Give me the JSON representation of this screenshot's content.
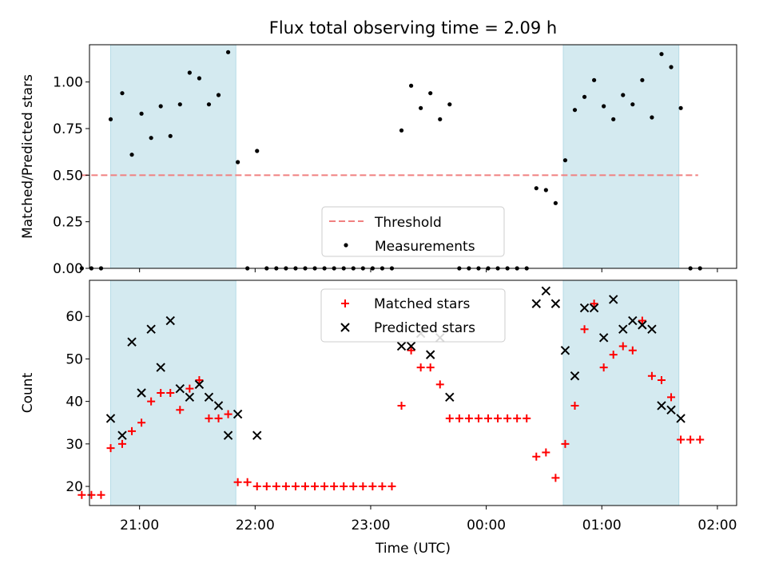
{
  "chart_data": [
    {
      "type": "scatter",
      "title": "Flux total observing time = 2.09 h",
      "ylabel": "Matched/Predicted stars",
      "xlabel": "",
      "ylim": [
        0,
        1.2
      ],
      "x_axis_type": "time",
      "xlim": [
        "20:34",
        "02:10"
      ],
      "x_tick_labels": [
        "21:00",
        "22:00",
        "23:00",
        "00:00",
        "01:00",
        "02:00"
      ],
      "y_tick_labels": [
        "0.00",
        "0.25",
        "0.50",
        "0.75",
        "1.00"
      ],
      "legend_position": "lower-center",
      "shaded_regions": [
        [
          "20:45",
          "21:50"
        ],
        [
          "00:40",
          "01:40"
        ]
      ],
      "shade_color": "#d4eaf0",
      "threshold": {
        "name": "Threshold",
        "value": 0.5,
        "x_range": [
          "20:30",
          "01:50"
        ],
        "color": "#f08080"
      },
      "series": [
        {
          "name": "Measurements",
          "color": "#000000",
          "points": [
            [
              "20:30",
              0.0
            ],
            [
              "20:35",
              0.0
            ],
            [
              "20:40",
              0.0
            ],
            [
              "20:45",
              0.8
            ],
            [
              "20:51",
              0.94
            ],
            [
              "20:56",
              0.61
            ],
            [
              "21:01",
              0.83
            ],
            [
              "21:06",
              0.7
            ],
            [
              "21:11",
              0.87
            ],
            [
              "21:16",
              0.71
            ],
            [
              "21:21",
              0.88
            ],
            [
              "21:26",
              1.05
            ],
            [
              "21:31",
              1.02
            ],
            [
              "21:36",
              0.88
            ],
            [
              "21:41",
              0.93
            ],
            [
              "21:46",
              1.16
            ],
            [
              "21:51",
              0.57
            ],
            [
              "21:56",
              0.0
            ],
            [
              "22:01",
              0.63
            ],
            [
              "22:06",
              0.0
            ],
            [
              "22:11",
              0.0
            ],
            [
              "22:16",
              0.0
            ],
            [
              "22:21",
              0.0
            ],
            [
              "22:26",
              0.0
            ],
            [
              "22:31",
              0.0
            ],
            [
              "22:36",
              0.0
            ],
            [
              "22:41",
              0.0
            ],
            [
              "22:46",
              0.0
            ],
            [
              "22:51",
              0.0
            ],
            [
              "22:56",
              0.0
            ],
            [
              "23:01",
              0.0
            ],
            [
              "23:06",
              0.0
            ],
            [
              "23:11",
              0.0
            ],
            [
              "23:16",
              0.74
            ],
            [
              "23:21",
              0.98
            ],
            [
              "23:26",
              0.86
            ],
            [
              "23:31",
              0.94
            ],
            [
              "23:36",
              0.8
            ],
            [
              "23:41",
              0.88
            ],
            [
              "23:46",
              0.0
            ],
            [
              "23:51",
              0.0
            ],
            [
              "23:56",
              0.0
            ],
            [
              "00:01",
              0.0
            ],
            [
              "00:06",
              0.0
            ],
            [
              "00:11",
              0.0
            ],
            [
              "00:16",
              0.0
            ],
            [
              "00:21",
              0.0
            ],
            [
              "00:26",
              0.43
            ],
            [
              "00:31",
              0.42
            ],
            [
              "00:36",
              0.35
            ],
            [
              "00:41",
              0.58
            ],
            [
              "00:46",
              0.85
            ],
            [
              "00:51",
              0.92
            ],
            [
              "00:56",
              1.01
            ],
            [
              "01:01",
              0.87
            ],
            [
              "01:06",
              0.8
            ],
            [
              "01:11",
              0.93
            ],
            [
              "01:16",
              0.88
            ],
            [
              "01:21",
              1.01
            ],
            [
              "01:26",
              0.81
            ],
            [
              "01:31",
              1.15
            ],
            [
              "01:36",
              1.08
            ],
            [
              "01:41",
              0.86
            ],
            [
              "01:46",
              0.0
            ],
            [
              "01:51",
              0.0
            ]
          ]
        }
      ]
    },
    {
      "type": "scatter",
      "title": "",
      "ylabel": "Count",
      "xlabel": "Time (UTC)",
      "ylim": [
        15.5,
        68.5
      ],
      "x_axis_type": "time",
      "xlim": [
        "20:34",
        "02:10"
      ],
      "x_tick_labels": [
        "21:00",
        "22:00",
        "23:00",
        "00:00",
        "01:00",
        "02:00"
      ],
      "y_tick_labels": [
        "20",
        "30",
        "40",
        "50",
        "60"
      ],
      "legend_position": "upper-center",
      "shaded_regions": [
        [
          "20:45",
          "21:50"
        ],
        [
          "00:40",
          "01:40"
        ]
      ],
      "series": [
        {
          "name": "Matched stars",
          "marker": "plus",
          "color": "#ff0000",
          "points": [
            [
              "20:30",
              18
            ],
            [
              "20:35",
              18
            ],
            [
              "20:40",
              18
            ],
            [
              "20:45",
              29
            ],
            [
              "20:51",
              30
            ],
            [
              "20:56",
              33
            ],
            [
              "21:01",
              35
            ],
            [
              "21:06",
              40
            ],
            [
              "21:11",
              42
            ],
            [
              "21:16",
              42
            ],
            [
              "21:21",
              38
            ],
            [
              "21:26",
              43
            ],
            [
              "21:31",
              45
            ],
            [
              "21:36",
              36
            ],
            [
              "21:41",
              36
            ],
            [
              "21:46",
              37
            ],
            [
              "21:51",
              21
            ],
            [
              "21:56",
              21
            ],
            [
              "22:01",
              20
            ],
            [
              "22:06",
              20
            ],
            [
              "22:11",
              20
            ],
            [
              "22:16",
              20
            ],
            [
              "22:21",
              20
            ],
            [
              "22:26",
              20
            ],
            [
              "22:31",
              20
            ],
            [
              "22:36",
              20
            ],
            [
              "22:41",
              20
            ],
            [
              "22:46",
              20
            ],
            [
              "22:51",
              20
            ],
            [
              "22:56",
              20
            ],
            [
              "23:01",
              20
            ],
            [
              "23:06",
              20
            ],
            [
              "23:11",
              20
            ],
            [
              "23:16",
              39
            ],
            [
              "23:21",
              52
            ],
            [
              "23:26",
              48
            ],
            [
              "23:31",
              48
            ],
            [
              "23:36",
              44
            ],
            [
              "23:41",
              36
            ],
            [
              "23:46",
              36
            ],
            [
              "23:51",
              36
            ],
            [
              "23:56",
              36
            ],
            [
              "00:01",
              36
            ],
            [
              "00:06",
              36
            ],
            [
              "00:11",
              36
            ],
            [
              "00:16",
              36
            ],
            [
              "00:21",
              36
            ],
            [
              "00:26",
              27
            ],
            [
              "00:31",
              28
            ],
            [
              "00:36",
              22
            ],
            [
              "00:41",
              30
            ],
            [
              "00:46",
              39
            ],
            [
              "00:51",
              57
            ],
            [
              "00:56",
              63
            ],
            [
              "01:01",
              48
            ],
            [
              "01:06",
              51
            ],
            [
              "01:11",
              53
            ],
            [
              "01:16",
              52
            ],
            [
              "01:21",
              59
            ],
            [
              "01:26",
              46
            ],
            [
              "01:31",
              45
            ],
            [
              "01:36",
              41
            ],
            [
              "01:41",
              31
            ],
            [
              "01:46",
              31
            ],
            [
              "01:51",
              31
            ]
          ]
        },
        {
          "name": "Predicted stars",
          "marker": "x",
          "color": "#000000",
          "points": [
            [
              "20:45",
              36
            ],
            [
              "20:51",
              32
            ],
            [
              "20:56",
              54
            ],
            [
              "21:01",
              42
            ],
            [
              "21:06",
              57
            ],
            [
              "21:11",
              48
            ],
            [
              "21:16",
              59
            ],
            [
              "21:21",
              43
            ],
            [
              "21:26",
              41
            ],
            [
              "21:31",
              44
            ],
            [
              "21:36",
              41
            ],
            [
              "21:41",
              39
            ],
            [
              "21:46",
              32
            ],
            [
              "21:51",
              37
            ],
            [
              "22:01",
              32
            ],
            [
              "23:16",
              53
            ],
            [
              "23:21",
              53
            ],
            [
              "23:26",
              56
            ],
            [
              "23:31",
              51
            ],
            [
              "23:36",
              55
            ],
            [
              "23:41",
              41
            ],
            [
              "00:26",
              63
            ],
            [
              "00:31",
              66
            ],
            [
              "00:36",
              63
            ],
            [
              "00:41",
              52
            ],
            [
              "00:46",
              46
            ],
            [
              "00:51",
              62
            ],
            [
              "00:56",
              62
            ],
            [
              "01:01",
              55
            ],
            [
              "01:06",
              64
            ],
            [
              "01:11",
              57
            ],
            [
              "01:16",
              59
            ],
            [
              "01:21",
              58
            ],
            [
              "01:26",
              57
            ],
            [
              "01:31",
              39
            ],
            [
              "01:36",
              38
            ],
            [
              "01:41",
              36
            ]
          ]
        }
      ]
    }
  ]
}
